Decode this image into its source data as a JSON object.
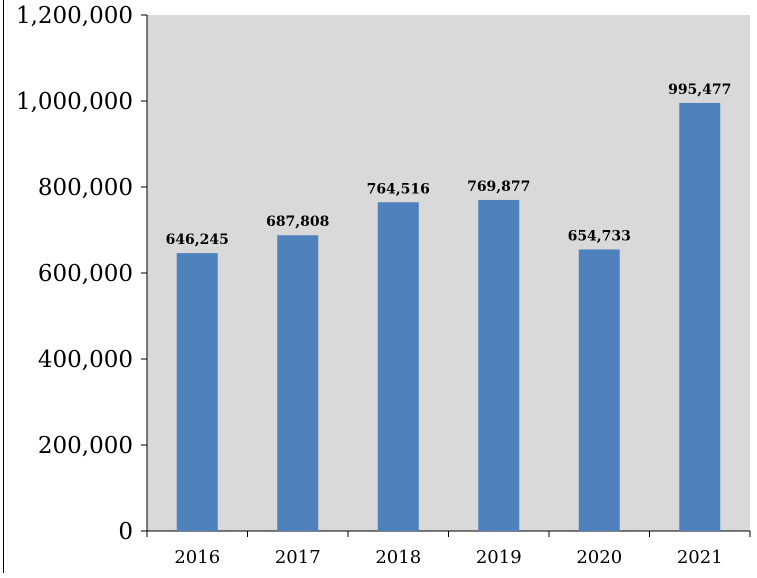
{
  "chart_data": {
    "type": "bar",
    "title": "",
    "xlabel": "",
    "ylabel": "",
    "categories": [
      "2016",
      "2017",
      "2018",
      "2019",
      "2020",
      "2021"
    ],
    "values": [
      646245,
      687808,
      764516,
      769877,
      654733,
      995477
    ],
    "value_labels": [
      "646,245",
      "687,808",
      "764,516",
      "769,877",
      "654,733",
      "995,477"
    ],
    "ylim": [
      0,
      1200000
    ],
    "yticks": [
      0,
      200000,
      400000,
      600000,
      800000,
      1000000,
      1200000
    ],
    "ytick_labels": [
      "0",
      "200,000",
      "400,000",
      "600,000",
      "800,000",
      "1,000,000",
      "1,200,000"
    ],
    "grid": false,
    "legend": "none",
    "colors": {
      "bar": "#4F81BD",
      "plot_background": "#D9D9D9",
      "axis": "#000000"
    }
  }
}
